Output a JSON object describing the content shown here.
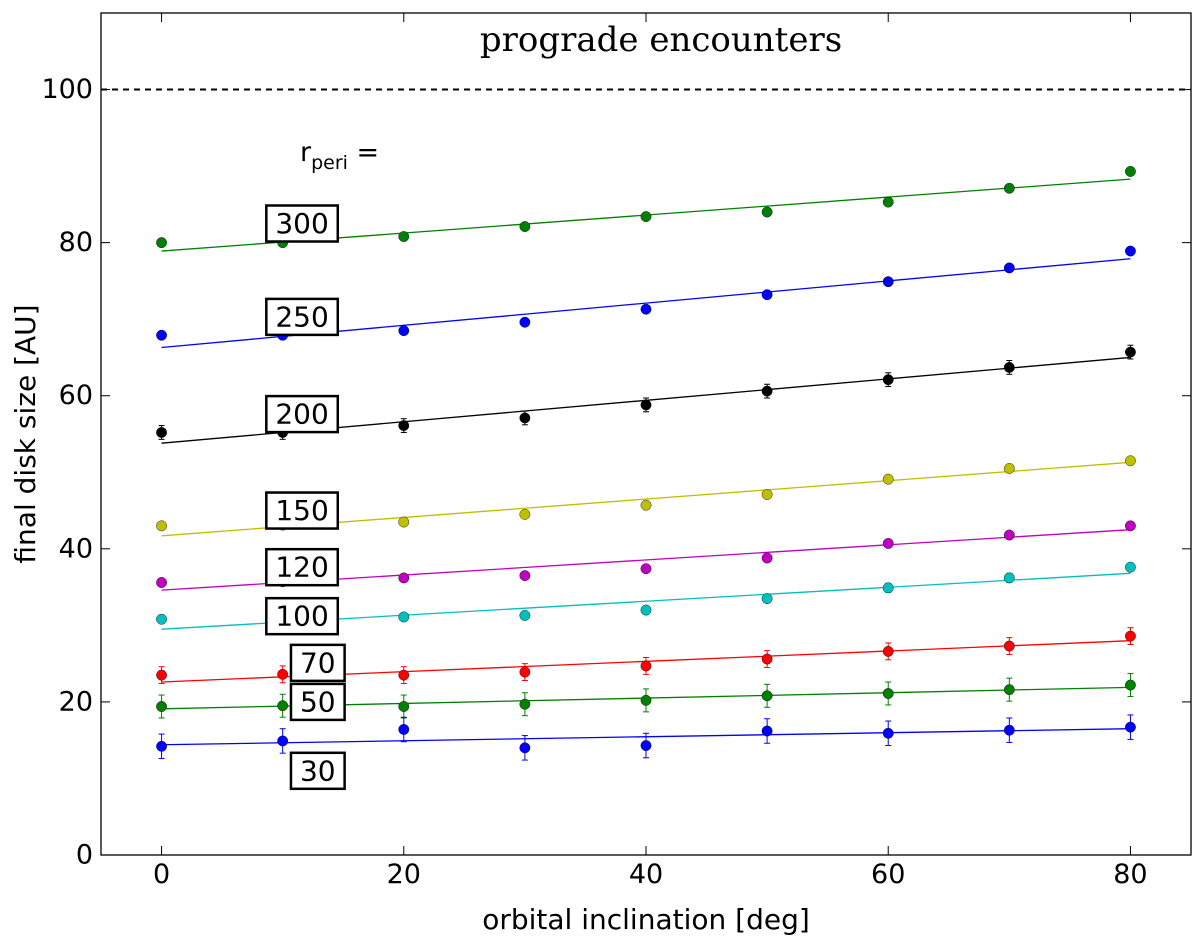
{
  "chart_data": {
    "type": "scatter",
    "title": "prograde encounters",
    "xlabel": "orbital inclination [deg]",
    "ylabel": "final disk size [AU]",
    "xlim": [
      -5,
      85
    ],
    "ylim": [
      0,
      110
    ],
    "xticks": [
      0,
      20,
      40,
      60,
      80
    ],
    "yticks": [
      0,
      20,
      40,
      60,
      80,
      100
    ],
    "grid": false,
    "reference_line": {
      "y": 100,
      "style": "dashed",
      "label": "100"
    },
    "legend_header": {
      "main": "r",
      "subscript": "peri",
      "suffix": " ="
    },
    "x": [
      0,
      10,
      20,
      30,
      40,
      50,
      60,
      70,
      80
    ],
    "series": [
      {
        "name": "300",
        "color": "#008000",
        "values": [
          80.0,
          80.0,
          80.8,
          82.1,
          83.4,
          84.0,
          85.3,
          87.1,
          89.3
        ],
        "errors": [
          0.4,
          0.4,
          0.4,
          0.4,
          0.4,
          0.4,
          0.4,
          0.4,
          0.4
        ],
        "fit": [
          78.9,
          88.3
        ],
        "label_pos": [
          11.6,
          82.5
        ]
      },
      {
        "name": "250",
        "color": "#0000ff",
        "values": [
          67.9,
          67.9,
          68.5,
          69.6,
          71.3,
          73.2,
          74.9,
          76.7,
          78.9
        ],
        "errors": [
          0.4,
          0.4,
          0.4,
          0.4,
          0.4,
          0.4,
          0.4,
          0.4,
          0.4
        ],
        "fit": [
          66.3,
          77.9
        ],
        "label_pos": [
          11.6,
          70.3
        ]
      },
      {
        "name": "200",
        "color": "#000000",
        "values": [
          55.2,
          55.2,
          56.1,
          57.1,
          58.8,
          60.6,
          62.1,
          63.7,
          65.7
        ],
        "errors": [
          0.9,
          0.9,
          0.9,
          0.9,
          0.9,
          0.9,
          0.9,
          0.9,
          0.9
        ],
        "fit": [
          53.8,
          65.0
        ],
        "label_pos": [
          11.6,
          57.6
        ]
      },
      {
        "name": "150",
        "color": "#bfbf00",
        "values": [
          43.0,
          43.1,
          43.5,
          44.5,
          45.7,
          47.1,
          49.1,
          50.5,
          51.5
        ],
        "errors": [
          0.4,
          0.4,
          0.4,
          0.4,
          0.4,
          0.4,
          0.4,
          0.4,
          0.4
        ],
        "fit": [
          41.7,
          51.3
        ],
        "label_pos": [
          11.6,
          45.0
        ]
      },
      {
        "name": "120",
        "color": "#bf00bf",
        "values": [
          35.6,
          35.7,
          36.2,
          36.5,
          37.4,
          38.8,
          40.7,
          41.8,
          43.0
        ],
        "errors": [
          0.4,
          0.4,
          0.4,
          0.4,
          0.4,
          0.4,
          0.4,
          0.4,
          0.4
        ],
        "fit": [
          34.6,
          42.5
        ],
        "label_pos": [
          11.6,
          37.6
        ]
      },
      {
        "name": "100",
        "color": "#00bfbf",
        "values": [
          30.8,
          30.7,
          31.1,
          31.3,
          32.0,
          33.5,
          34.9,
          36.2,
          37.6
        ],
        "errors": [
          0.4,
          0.4,
          0.4,
          0.4,
          0.4,
          0.4,
          0.6,
          0.6,
          0.4
        ],
        "fit": [
          29.5,
          36.8
        ],
        "label_pos": [
          11.6,
          31.2
        ]
      },
      {
        "name": "70",
        "color": "#ff0000",
        "values": [
          23.5,
          23.6,
          23.5,
          23.9,
          24.7,
          25.6,
          26.6,
          27.3,
          28.6
        ],
        "errors": [
          1.1,
          1.1,
          1.1,
          1.1,
          1.1,
          1.1,
          1.1,
          1.1,
          1.1
        ],
        "fit": [
          22.6,
          28.0
        ],
        "label_pos": [
          12.9,
          25.1
        ]
      },
      {
        "name": "50",
        "color": "#008000",
        "values": [
          19.4,
          19.5,
          19.4,
          19.7,
          20.2,
          20.8,
          21.1,
          21.6,
          22.2
        ],
        "errors": [
          1.5,
          1.5,
          1.5,
          1.5,
          1.5,
          1.5,
          1.5,
          1.5,
          1.5
        ],
        "fit": [
          19.1,
          21.9
        ],
        "label_pos": [
          12.9,
          20.0
        ]
      },
      {
        "name": "30",
        "color": "#0000ff",
        "values": [
          14.2,
          14.9,
          16.4,
          14.0,
          14.3,
          16.2,
          15.9,
          16.3,
          16.7
        ],
        "errors": [
          1.6,
          1.6,
          1.6,
          1.6,
          1.6,
          1.6,
          1.6,
          1.6,
          1.6
        ],
        "fit": [
          14.4,
          16.5
        ],
        "label_pos": [
          12.9,
          11.0
        ]
      }
    ]
  }
}
